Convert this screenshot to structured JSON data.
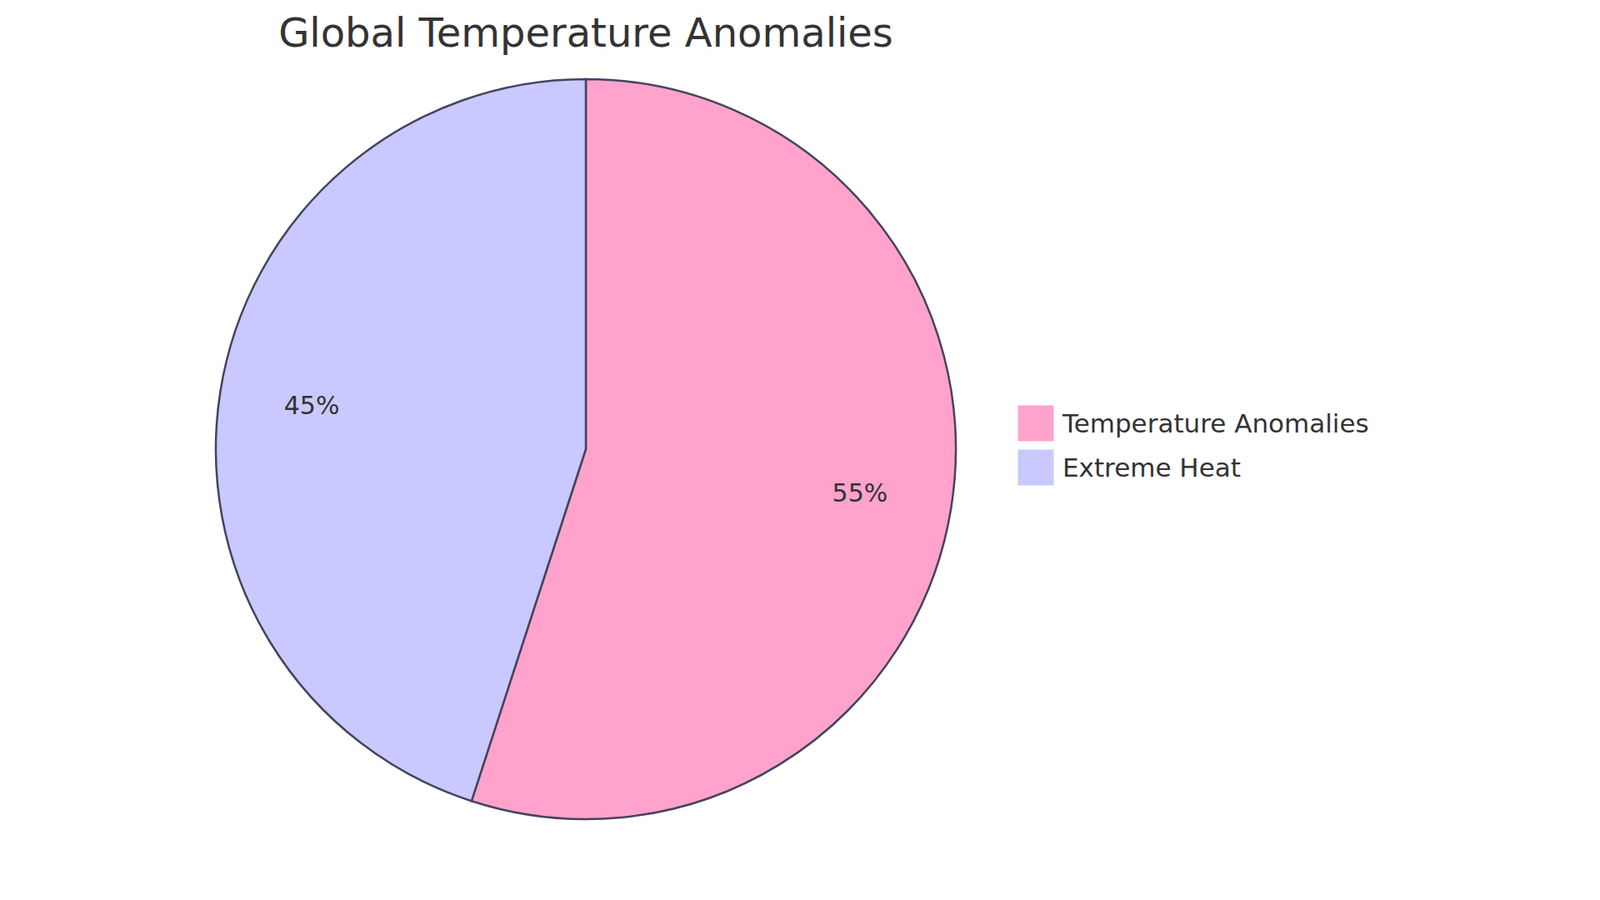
{
  "chart_data": {
    "type": "pie",
    "title": "Global Temperature Anomalies",
    "categories": [
      "Temperature Anomalies",
      "Extreme Heat"
    ],
    "values": [
      55,
      45
    ],
    "value_labels": [
      "55%",
      "45%"
    ],
    "data_labels": true,
    "colors": [
      "#FFA3CC",
      "#C9C9FF"
    ],
    "legend": "right"
  }
}
